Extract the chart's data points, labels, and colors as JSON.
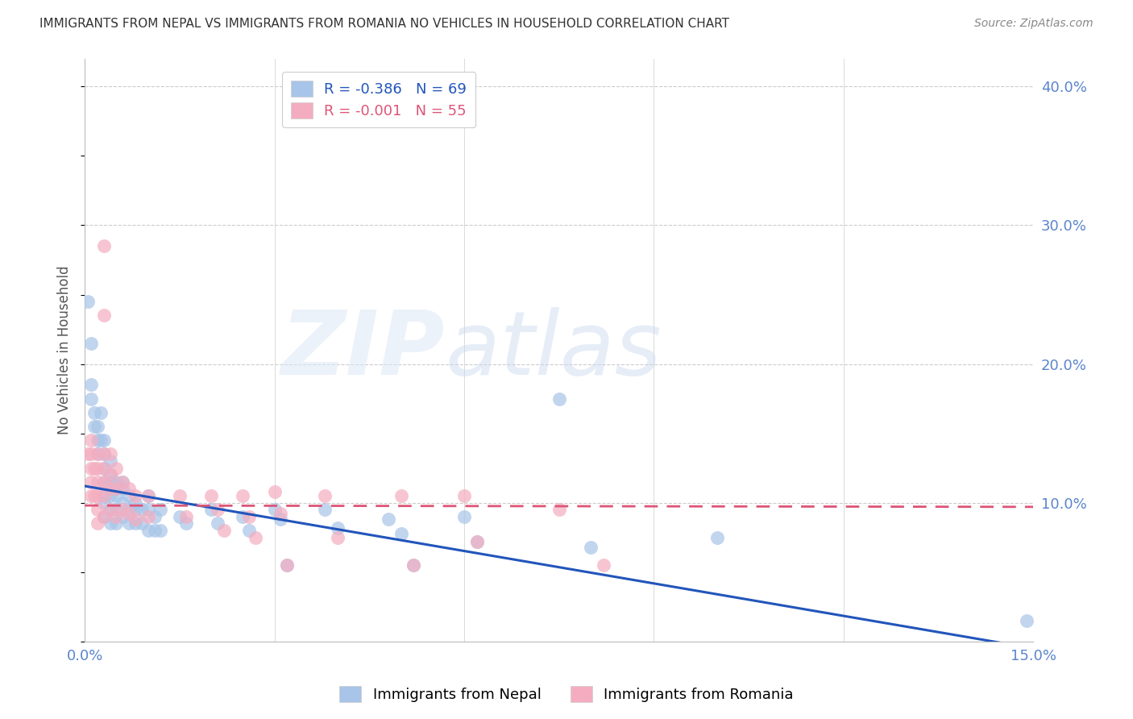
{
  "title": "IMMIGRANTS FROM NEPAL VS IMMIGRANTS FROM ROMANIA NO VEHICLES IN HOUSEHOLD CORRELATION CHART",
  "source": "Source: ZipAtlas.com",
  "ylabel": "No Vehicles in Household",
  "xlim": [
    0.0,
    0.15
  ],
  "ylim": [
    0.0,
    0.42
  ],
  "xticks": [
    0.0,
    0.03,
    0.06,
    0.09,
    0.12,
    0.15
  ],
  "xticklabels": [
    "0.0%",
    "",
    "",
    "",
    "",
    "15.0%"
  ],
  "yticks_right": [
    0.0,
    0.1,
    0.2,
    0.3,
    0.4
  ],
  "yticklabels_right": [
    "",
    "10.0%",
    "20.0%",
    "30.0%",
    "40.0%"
  ],
  "nepal_color": "#a8c4e8",
  "romania_color": "#f4adc0",
  "nepal_line_color": "#2255bb",
  "romania_line_color": "#dd5577",
  "legend_nepal_R": "-0.386",
  "legend_nepal_N": "69",
  "legend_romania_R": "-0.001",
  "legend_romania_N": "55",
  "watermark_zip": "ZIP",
  "watermark_atlas": "atlas",
  "nepal_line_x0": 0.0,
  "nepal_line_y0": 0.112,
  "nepal_line_x1": 0.15,
  "nepal_line_y1": -0.005,
  "romania_line_x0": 0.0,
  "romania_line_y0": 0.098,
  "romania_line_x1": 0.15,
  "romania_line_y1": 0.097,
  "nepal_x": [
    0.0005,
    0.001,
    0.001,
    0.001,
    0.0015,
    0.0015,
    0.002,
    0.002,
    0.002,
    0.0025,
    0.0025,
    0.003,
    0.003,
    0.003,
    0.003,
    0.003,
    0.003,
    0.003,
    0.004,
    0.004,
    0.004,
    0.004,
    0.004,
    0.004,
    0.004,
    0.005,
    0.005,
    0.005,
    0.005,
    0.005,
    0.006,
    0.006,
    0.006,
    0.006,
    0.007,
    0.007,
    0.007,
    0.008,
    0.008,
    0.008,
    0.009,
    0.009,
    0.01,
    0.01,
    0.01,
    0.011,
    0.011,
    0.012,
    0.012,
    0.015,
    0.016,
    0.02,
    0.021,
    0.025,
    0.026,
    0.03,
    0.031,
    0.032,
    0.038,
    0.04,
    0.048,
    0.05,
    0.052,
    0.06,
    0.062,
    0.075,
    0.08,
    0.1,
    0.149
  ],
  "nepal_y": [
    0.245,
    0.215,
    0.185,
    0.175,
    0.165,
    0.155,
    0.155,
    0.145,
    0.135,
    0.165,
    0.145,
    0.145,
    0.135,
    0.125,
    0.115,
    0.105,
    0.1,
    0.09,
    0.13,
    0.12,
    0.115,
    0.11,
    0.105,
    0.095,
    0.085,
    0.115,
    0.11,
    0.105,
    0.095,
    0.085,
    0.115,
    0.11,
    0.1,
    0.09,
    0.105,
    0.095,
    0.085,
    0.1,
    0.095,
    0.085,
    0.095,
    0.085,
    0.105,
    0.095,
    0.08,
    0.09,
    0.08,
    0.095,
    0.08,
    0.09,
    0.085,
    0.095,
    0.085,
    0.09,
    0.08,
    0.095,
    0.088,
    0.055,
    0.095,
    0.082,
    0.088,
    0.078,
    0.055,
    0.09,
    0.072,
    0.175,
    0.068,
    0.075,
    0.015
  ],
  "romania_x": [
    0.0005,
    0.001,
    0.001,
    0.001,
    0.001,
    0.001,
    0.0015,
    0.0015,
    0.002,
    0.002,
    0.002,
    0.002,
    0.002,
    0.002,
    0.003,
    0.003,
    0.003,
    0.003,
    0.003,
    0.003,
    0.003,
    0.004,
    0.004,
    0.004,
    0.004,
    0.005,
    0.005,
    0.005,
    0.006,
    0.006,
    0.007,
    0.007,
    0.008,
    0.008,
    0.01,
    0.01,
    0.015,
    0.016,
    0.02,
    0.021,
    0.022,
    0.025,
    0.026,
    0.027,
    0.03,
    0.031,
    0.032,
    0.038,
    0.04,
    0.05,
    0.052,
    0.06,
    0.062,
    0.075,
    0.082
  ],
  "romania_y": [
    0.135,
    0.145,
    0.135,
    0.125,
    0.115,
    0.105,
    0.125,
    0.105,
    0.135,
    0.125,
    0.115,
    0.105,
    0.095,
    0.085,
    0.285,
    0.235,
    0.135,
    0.125,
    0.115,
    0.105,
    0.09,
    0.135,
    0.12,
    0.11,
    0.095,
    0.125,
    0.11,
    0.09,
    0.115,
    0.095,
    0.11,
    0.092,
    0.105,
    0.088,
    0.105,
    0.09,
    0.105,
    0.09,
    0.105,
    0.095,
    0.08,
    0.105,
    0.09,
    0.075,
    0.108,
    0.092,
    0.055,
    0.105,
    0.075,
    0.105,
    0.055,
    0.105,
    0.072,
    0.095,
    0.055
  ]
}
